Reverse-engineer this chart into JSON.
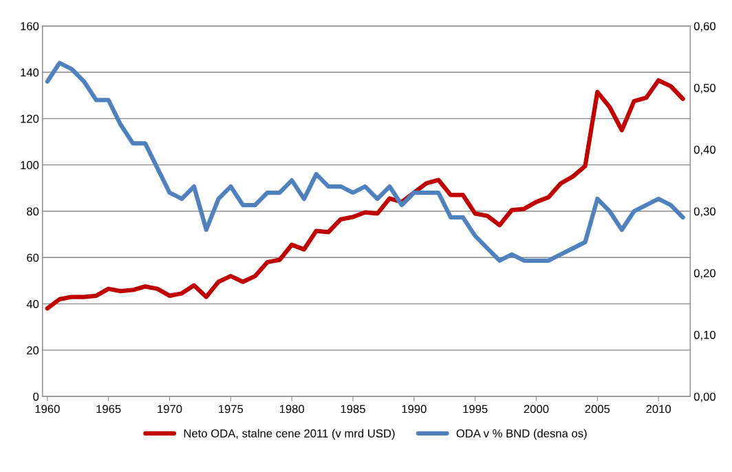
{
  "chart_data": {
    "type": "line",
    "x": [
      1960,
      1961,
      1962,
      1963,
      1964,
      1965,
      1966,
      1967,
      1968,
      1969,
      1970,
      1971,
      1972,
      1973,
      1974,
      1975,
      1976,
      1977,
      1978,
      1979,
      1980,
      1981,
      1982,
      1983,
      1984,
      1985,
      1986,
      1987,
      1988,
      1989,
      1990,
      1991,
      1992,
      1993,
      1994,
      1995,
      1996,
      1997,
      1998,
      1999,
      2000,
      2001,
      2002,
      2003,
      2004,
      2005,
      2006,
      2007,
      2008,
      2009,
      2010,
      2011,
      2012
    ],
    "series": [
      {
        "name": "Neto ODA, stalne cene 2011 (v mrd USD)",
        "color": "#c00000",
        "values": [
          38,
          42,
          43,
          43,
          43.5,
          46.5,
          45.5,
          46,
          47.5,
          46.5,
          43.5,
          44.5,
          48,
          43,
          49.5,
          52,
          49.5,
          52,
          58,
          59,
          65.5,
          63.5,
          71.5,
          71,
          76.5,
          77.5,
          79.5,
          79,
          85.5,
          84,
          88,
          92,
          93.5,
          87,
          87,
          79,
          78,
          74,
          80.5,
          81,
          84,
          86,
          92,
          95,
          99.5,
          131.5,
          125,
          115,
          127.5,
          129,
          136.5,
          134,
          128.5
        ]
      },
      {
        "name": "ODA v % BND (desna os)",
        "color": "#4f81bd",
        "axis": "y2",
        "values": [
          0.51,
          0.54,
          0.53,
          0.51,
          0.48,
          0.48,
          0.44,
          0.41,
          0.41,
          0.37,
          0.33,
          0.32,
          0.34,
          0.27,
          0.32,
          0.34,
          0.31,
          0.31,
          0.33,
          0.33,
          0.35,
          0.32,
          0.36,
          0.34,
          0.34,
          0.33,
          0.34,
          0.32,
          0.34,
          0.31,
          0.33,
          0.33,
          0.33,
          0.29,
          0.29,
          0.26,
          0.24,
          0.22,
          0.23,
          0.22,
          0.22,
          0.22,
          0.23,
          0.24,
          0.25,
          0.32,
          0.3,
          0.27,
          0.3,
          0.31,
          0.32,
          0.31,
          0.29
        ]
      }
    ],
    "xlim": [
      1959.6,
      2012.6
    ],
    "xticks": [
      1960,
      1965,
      1970,
      1975,
      1980,
      1985,
      1990,
      1995,
      2000,
      2005,
      2010
    ],
    "ylim": [
      0,
      160
    ],
    "yticks": [
      0,
      20,
      40,
      60,
      80,
      100,
      120,
      140,
      160
    ],
    "y2lim": [
      0,
      0.6
    ],
    "y2ticks": [
      {
        "value": 0,
        "label": "0,00"
      },
      {
        "value": 0.1,
        "label": "0,10"
      },
      {
        "value": 0.2,
        "label": "0,20"
      },
      {
        "value": 0.3,
        "label": "0,30"
      },
      {
        "value": 0.4,
        "label": "0,40"
      },
      {
        "value": 0.5,
        "label": "0,50"
      },
      {
        "value": 0.6,
        "label": "0,60"
      }
    ],
    "grid": "y",
    "legend": "bottom",
    "line_style": "solid",
    "marker": "none"
  }
}
